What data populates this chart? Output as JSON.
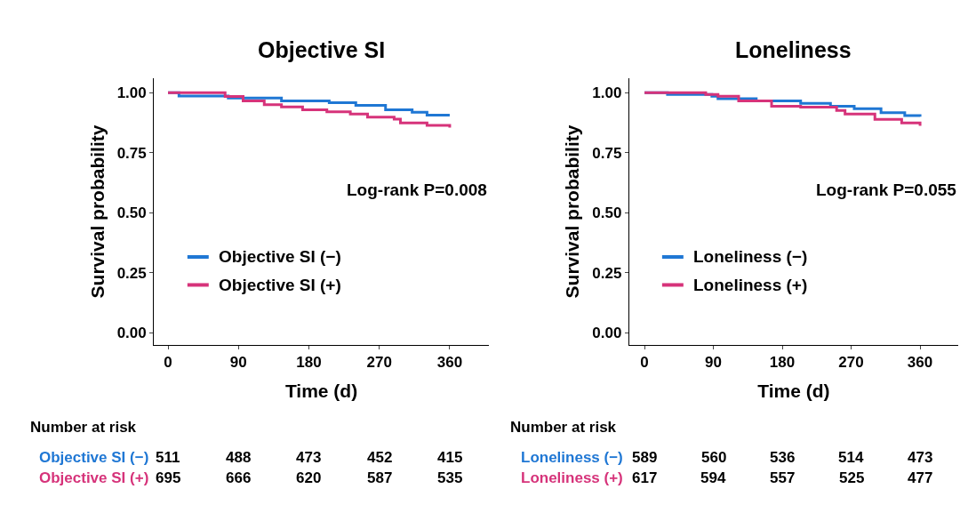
{
  "chart_data": [
    {
      "type": "step",
      "title": "Objective SI",
      "xlabel": "Time (d)",
      "ylabel": "Survival probability",
      "xlim": [
        -18,
        410
      ],
      "xticks": [
        0,
        90,
        180,
        270,
        360
      ],
      "ylim": [
        -0.05,
        1.06
      ],
      "yticks": [
        {
          "value": 0,
          "label": "0.00"
        },
        {
          "value": 0.25,
          "label": "0.25"
        },
        {
          "value": 0.5,
          "label": "0.50"
        },
        {
          "value": 0.75,
          "label": "0.75"
        },
        {
          "value": 1,
          "label": "1.00"
        }
      ],
      "legend": "left",
      "series": [
        {
          "name": "Objective SI (−)",
          "color": "#1f77d4",
          "x": [
            0,
            14,
            77,
            145,
            206,
            240,
            278,
            312,
            331,
            360
          ],
          "values": [
            1.0,
            0.986,
            0.978,
            0.966,
            0.958,
            0.947,
            0.929,
            0.919,
            0.907,
            0.907
          ]
        },
        {
          "name": "Objective SI (+)",
          "color": "#d6337a",
          "x": [
            0,
            73,
            96,
            123,
            145,
            172,
            203,
            233,
            255,
            289,
            297,
            331,
            360
          ],
          "values": [
            1.0,
            0.984,
            0.966,
            0.95,
            0.941,
            0.929,
            0.92,
            0.911,
            0.898,
            0.89,
            0.874,
            0.864,
            0.855
          ]
        }
      ],
      "annotations": [
        "Log-rank P=0.008",
        "Number at risk",
        "Objective SI (−)",
        "511",
        "488",
        "473",
        "452",
        "415",
        "Objective SI (+)",
        "695",
        "666",
        "620",
        "587",
        "535"
      ]
    },
    {
      "type": "step",
      "title": "Loneliness",
      "xlabel": "Time (d)",
      "ylabel": "Survival probability",
      "xlim": [
        -20,
        410
      ],
      "xticks": [
        0,
        90,
        180,
        270,
        360
      ],
      "ylim": [
        -0.05,
        1.06
      ],
      "yticks": [
        {
          "value": 0,
          "label": "0.00"
        },
        {
          "value": 0.25,
          "label": "0.25"
        },
        {
          "value": 0.5,
          "label": "0.50"
        },
        {
          "value": 0.75,
          "label": "0.75"
        },
        {
          "value": 1,
          "label": "1.00"
        }
      ],
      "legend": "left",
      "series": [
        {
          "name": "Loneliness (−)",
          "color": "#1f77d4",
          "x": [
            0,
            30,
            88,
            96,
            146,
            204,
            243,
            274,
            309,
            340,
            360
          ],
          "values": [
            1.0,
            0.993,
            0.985,
            0.975,
            0.966,
            0.956,
            0.944,
            0.933,
            0.917,
            0.905,
            0.9
          ]
        },
        {
          "name": "Loneliness (+)",
          "color": "#d6337a",
          "x": [
            0,
            80,
            96,
            123,
            166,
            204,
            251,
            262,
            301,
            336,
            360
          ],
          "values": [
            1.0,
            0.993,
            0.985,
            0.966,
            0.944,
            0.94,
            0.926,
            0.911,
            0.889,
            0.874,
            0.862
          ]
        }
      ],
      "annotations": [
        "Log-rank P=0.055",
        "Number at risk",
        "Loneliness (−)",
        "589",
        "560",
        "536",
        "514",
        "473",
        "Loneliness (+)",
        "617",
        "594",
        "557",
        "525",
        "477"
      ]
    }
  ]
}
